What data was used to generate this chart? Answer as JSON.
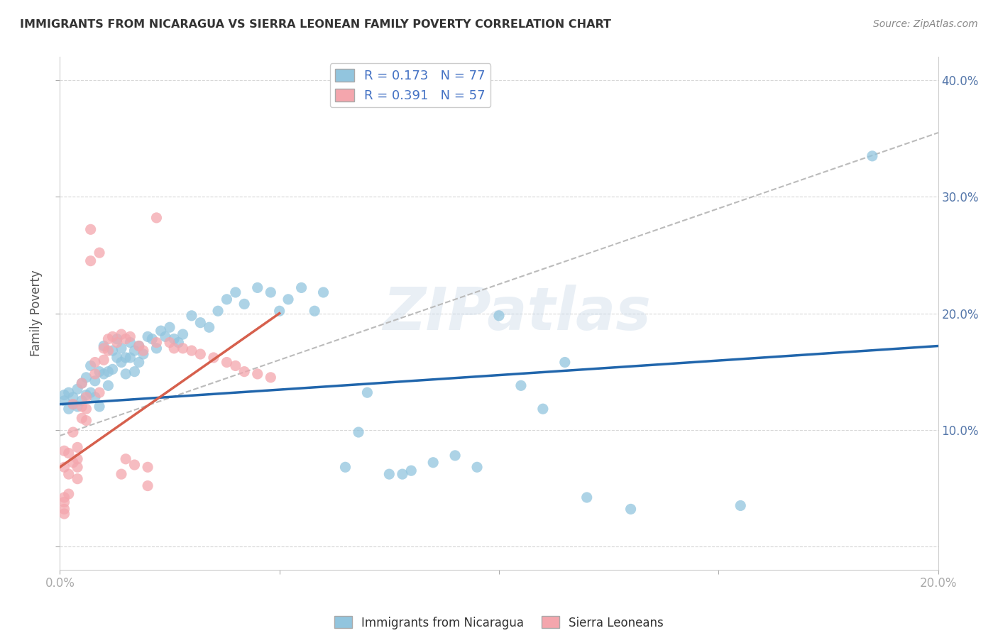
{
  "title": "IMMIGRANTS FROM NICARAGUA VS SIERRA LEONEAN FAMILY POVERTY CORRELATION CHART",
  "source": "Source: ZipAtlas.com",
  "ylabel_label": "Family Poverty",
  "x_min": 0.0,
  "x_max": 0.2,
  "y_min": -0.02,
  "y_max": 0.42,
  "x_ticks": [
    0.0,
    0.05,
    0.1,
    0.15,
    0.2
  ],
  "x_tick_labels": [
    "0.0%",
    "",
    "",
    "",
    "20.0%"
  ],
  "y_ticks": [
    0.0,
    0.1,
    0.2,
    0.3,
    0.4
  ],
  "y_tick_labels": [
    "",
    "10.0%",
    "20.0%",
    "30.0%",
    "40.0%"
  ],
  "watermark": "ZIPatlas",
  "legend_label_blue": "Immigrants from Nicaragua",
  "legend_label_pink": "Sierra Leoneans",
  "R_blue": 0.173,
  "N_blue": 77,
  "R_pink": 0.391,
  "N_pink": 57,
  "blue_color": "#92c5de",
  "pink_color": "#f4a6ad",
  "line_blue": "#2166ac",
  "line_pink": "#d6604d",
  "dashed_color": "#bbbbbb",
  "blue_scatter": [
    [
      0.001,
      0.125
    ],
    [
      0.001,
      0.13
    ],
    [
      0.002,
      0.132
    ],
    [
      0.002,
      0.118
    ],
    [
      0.003,
      0.128
    ],
    [
      0.003,
      0.122
    ],
    [
      0.004,
      0.135
    ],
    [
      0.004,
      0.12
    ],
    [
      0.005,
      0.14
    ],
    [
      0.005,
      0.125
    ],
    [
      0.006,
      0.145
    ],
    [
      0.006,
      0.13
    ],
    [
      0.007,
      0.155
    ],
    [
      0.007,
      0.132
    ],
    [
      0.008,
      0.142
    ],
    [
      0.008,
      0.128
    ],
    [
      0.009,
      0.15
    ],
    [
      0.009,
      0.12
    ],
    [
      0.01,
      0.172
    ],
    [
      0.01,
      0.148
    ],
    [
      0.011,
      0.15
    ],
    [
      0.011,
      0.138
    ],
    [
      0.012,
      0.168
    ],
    [
      0.012,
      0.152
    ],
    [
      0.013,
      0.178
    ],
    [
      0.013,
      0.162
    ],
    [
      0.014,
      0.17
    ],
    [
      0.014,
      0.158
    ],
    [
      0.015,
      0.162
    ],
    [
      0.015,
      0.148
    ],
    [
      0.016,
      0.175
    ],
    [
      0.016,
      0.162
    ],
    [
      0.017,
      0.168
    ],
    [
      0.017,
      0.15
    ],
    [
      0.018,
      0.172
    ],
    [
      0.018,
      0.158
    ],
    [
      0.019,
      0.165
    ],
    [
      0.02,
      0.18
    ],
    [
      0.021,
      0.178
    ],
    [
      0.022,
      0.17
    ],
    [
      0.023,
      0.185
    ],
    [
      0.024,
      0.18
    ],
    [
      0.025,
      0.188
    ],
    [
      0.026,
      0.178
    ],
    [
      0.027,
      0.175
    ],
    [
      0.028,
      0.182
    ],
    [
      0.03,
      0.198
    ],
    [
      0.032,
      0.192
    ],
    [
      0.034,
      0.188
    ],
    [
      0.036,
      0.202
    ],
    [
      0.038,
      0.212
    ],
    [
      0.04,
      0.218
    ],
    [
      0.042,
      0.208
    ],
    [
      0.045,
      0.222
    ],
    [
      0.048,
      0.218
    ],
    [
      0.05,
      0.202
    ],
    [
      0.052,
      0.212
    ],
    [
      0.055,
      0.222
    ],
    [
      0.058,
      0.202
    ],
    [
      0.06,
      0.218
    ],
    [
      0.065,
      0.068
    ],
    [
      0.068,
      0.098
    ],
    [
      0.07,
      0.132
    ],
    [
      0.075,
      0.062
    ],
    [
      0.078,
      0.062
    ],
    [
      0.08,
      0.065
    ],
    [
      0.085,
      0.072
    ],
    [
      0.09,
      0.078
    ],
    [
      0.095,
      0.068
    ],
    [
      0.1,
      0.198
    ],
    [
      0.105,
      0.138
    ],
    [
      0.11,
      0.118
    ],
    [
      0.115,
      0.158
    ],
    [
      0.12,
      0.042
    ],
    [
      0.13,
      0.032
    ],
    [
      0.155,
      0.035
    ],
    [
      0.185,
      0.335
    ]
  ],
  "pink_scatter": [
    [
      0.001,
      0.082
    ],
    [
      0.001,
      0.068
    ],
    [
      0.001,
      0.042
    ],
    [
      0.001,
      0.038
    ],
    [
      0.001,
      0.032
    ],
    [
      0.001,
      0.028
    ],
    [
      0.002,
      0.08
    ],
    [
      0.002,
      0.062
    ],
    [
      0.002,
      0.045
    ],
    [
      0.003,
      0.122
    ],
    [
      0.003,
      0.098
    ],
    [
      0.003,
      0.072
    ],
    [
      0.004,
      0.085
    ],
    [
      0.004,
      0.075
    ],
    [
      0.004,
      0.068
    ],
    [
      0.004,
      0.058
    ],
    [
      0.005,
      0.14
    ],
    [
      0.005,
      0.12
    ],
    [
      0.005,
      0.11
    ],
    [
      0.006,
      0.128
    ],
    [
      0.006,
      0.118
    ],
    [
      0.006,
      0.108
    ],
    [
      0.007,
      0.272
    ],
    [
      0.007,
      0.245
    ],
    [
      0.008,
      0.158
    ],
    [
      0.008,
      0.148
    ],
    [
      0.009,
      0.252
    ],
    [
      0.009,
      0.132
    ],
    [
      0.01,
      0.17
    ],
    [
      0.01,
      0.16
    ],
    [
      0.011,
      0.178
    ],
    [
      0.011,
      0.168
    ],
    [
      0.012,
      0.18
    ],
    [
      0.013,
      0.175
    ],
    [
      0.014,
      0.182
    ],
    [
      0.014,
      0.062
    ],
    [
      0.015,
      0.178
    ],
    [
      0.015,
      0.075
    ],
    [
      0.016,
      0.18
    ],
    [
      0.017,
      0.07
    ],
    [
      0.018,
      0.172
    ],
    [
      0.019,
      0.168
    ],
    [
      0.02,
      0.052
    ],
    [
      0.02,
      0.068
    ],
    [
      0.022,
      0.175
    ],
    [
      0.022,
      0.282
    ],
    [
      0.025,
      0.175
    ],
    [
      0.026,
      0.17
    ],
    [
      0.028,
      0.17
    ],
    [
      0.03,
      0.168
    ],
    [
      0.032,
      0.165
    ],
    [
      0.035,
      0.162
    ],
    [
      0.038,
      0.158
    ],
    [
      0.04,
      0.155
    ],
    [
      0.042,
      0.15
    ],
    [
      0.045,
      0.148
    ],
    [
      0.048,
      0.145
    ]
  ],
  "blue_trend_x": [
    0.0,
    0.2
  ],
  "blue_trend_y": [
    0.122,
    0.172
  ],
  "pink_trend_x": [
    0.0,
    0.05
  ],
  "pink_trend_y": [
    0.068,
    0.2
  ],
  "dashed_trend_x": [
    0.0,
    0.2
  ],
  "dashed_trend_y": [
    0.095,
    0.355
  ],
  "background_color": "#ffffff",
  "grid_color": "#d8d8d8"
}
